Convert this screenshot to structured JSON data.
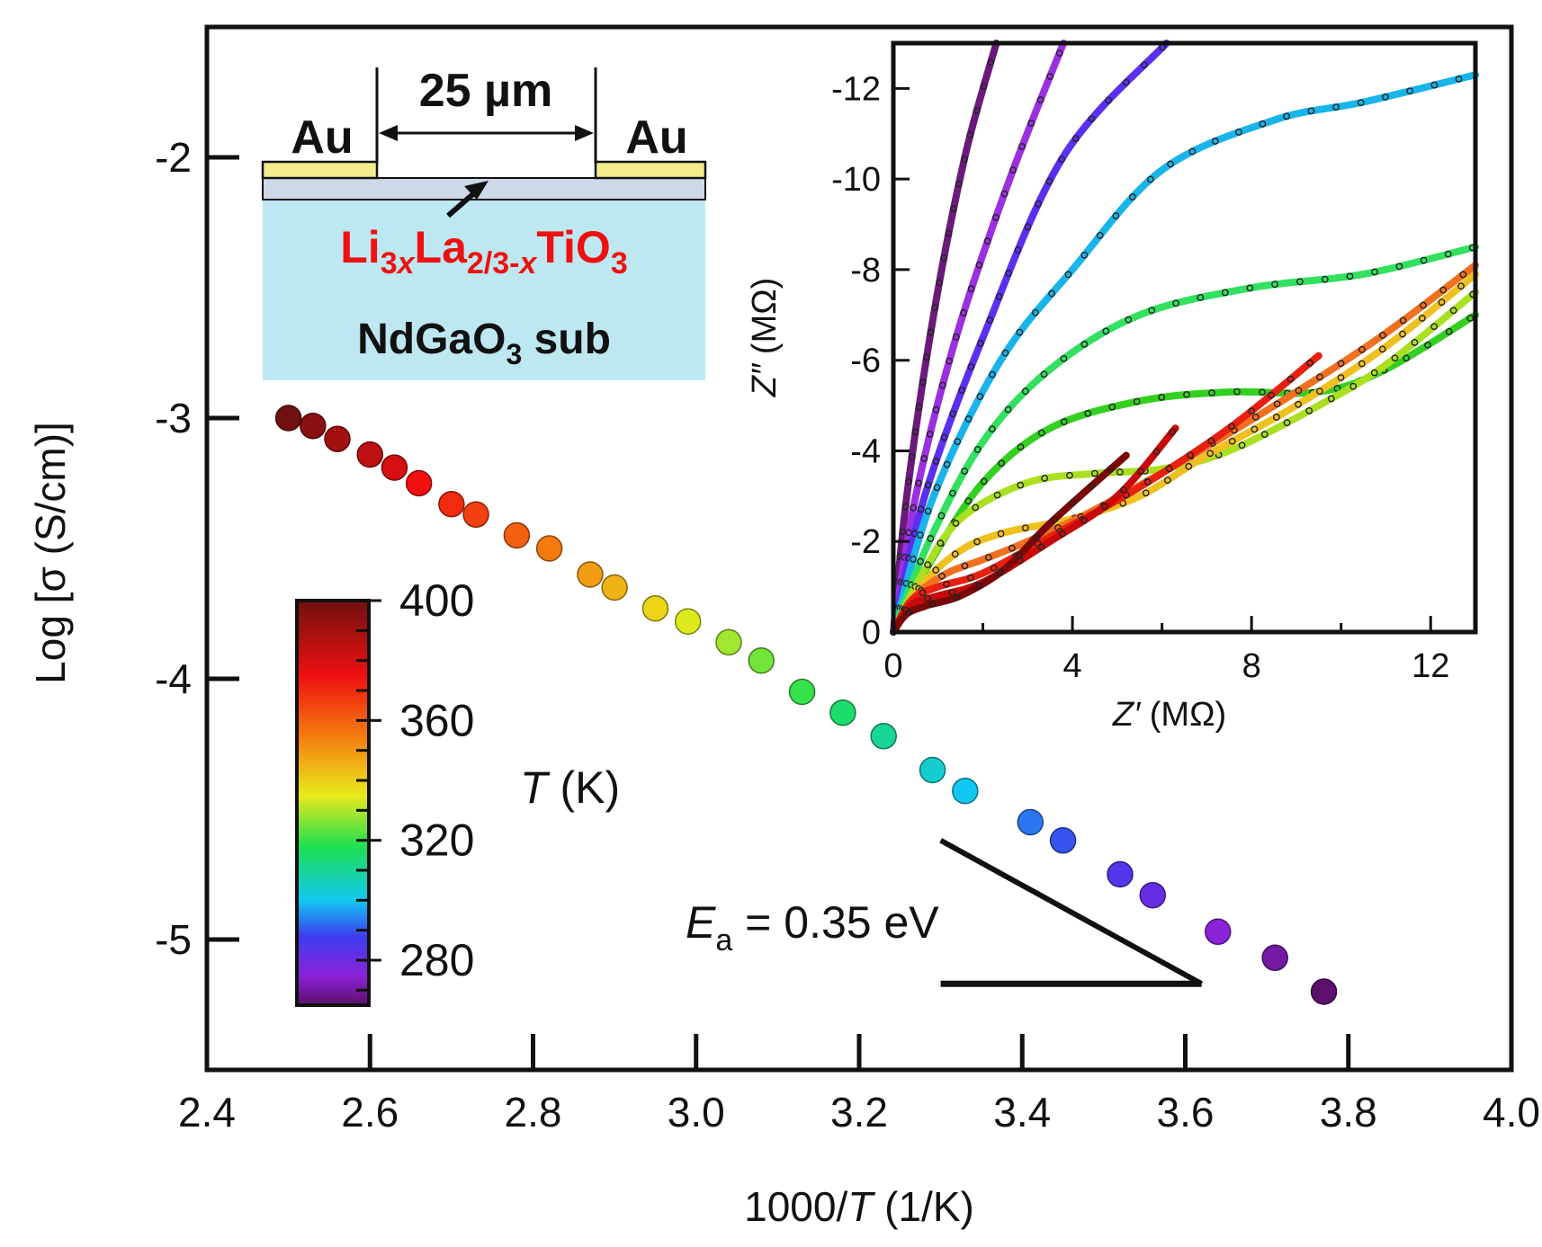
{
  "chart_data": [
    {
      "type": "scatter",
      "name": "arrhenius",
      "xlabel": "1000/T (1/K)",
      "xlabel_parts": [
        "1000/",
        "T",
        " (1/K)"
      ],
      "ylabel": "Log [σ (S/cm)]",
      "xlim": [
        2.4,
        4.0
      ],
      "ylim": [
        -5.5,
        -1.5
      ],
      "xticks": [
        2.4,
        2.6,
        2.8,
        3.0,
        3.2,
        3.4,
        3.6,
        3.8,
        4.0
      ],
      "xtick_labels": [
        "2.4",
        "2.6",
        "2.8",
        "3.0",
        "3.2",
        "3.4",
        "3.6",
        "3.8",
        "4.0"
      ],
      "yticks": [
        -2,
        -3,
        -4,
        -5
      ],
      "ytick_labels": [
        "-2",
        "-3",
        "-4",
        "-5"
      ],
      "points": [
        {
          "x": 2.5,
          "y": -3.0,
          "T": 400
        },
        {
          "x": 2.53,
          "y": -3.03,
          "T": 395
        },
        {
          "x": 2.56,
          "y": -3.08,
          "T": 390
        },
        {
          "x": 2.6,
          "y": -3.14,
          "T": 385
        },
        {
          "x": 2.63,
          "y": -3.19,
          "T": 380
        },
        {
          "x": 2.66,
          "y": -3.25,
          "T": 375
        },
        {
          "x": 2.7,
          "y": -3.33,
          "T": 370
        },
        {
          "x": 2.73,
          "y": -3.37,
          "T": 366
        },
        {
          "x": 2.78,
          "y": -3.45,
          "T": 360
        },
        {
          "x": 2.82,
          "y": -3.5,
          "T": 355
        },
        {
          "x": 2.87,
          "y": -3.6,
          "T": 349
        },
        {
          "x": 2.9,
          "y": -3.65,
          "T": 345
        },
        {
          "x": 2.95,
          "y": -3.73,
          "T": 339
        },
        {
          "x": 2.99,
          "y": -3.78,
          "T": 334
        },
        {
          "x": 3.04,
          "y": -3.86,
          "T": 329
        },
        {
          "x": 3.08,
          "y": -3.93,
          "T": 325
        },
        {
          "x": 3.13,
          "y": -4.05,
          "T": 320
        },
        {
          "x": 3.18,
          "y": -4.13,
          "T": 315
        },
        {
          "x": 3.23,
          "y": -4.22,
          "T": 310
        },
        {
          "x": 3.29,
          "y": -4.35,
          "T": 304
        },
        {
          "x": 3.33,
          "y": -4.43,
          "T": 300
        },
        {
          "x": 3.41,
          "y": -4.55,
          "T": 293
        },
        {
          "x": 3.45,
          "y": -4.62,
          "T": 290
        },
        {
          "x": 3.52,
          "y": -4.75,
          "T": 284
        },
        {
          "x": 3.56,
          "y": -4.83,
          "T": 281
        },
        {
          "x": 3.64,
          "y": -4.97,
          "T": 275
        },
        {
          "x": 3.71,
          "y": -5.07,
          "T": 270
        },
        {
          "x": 3.77,
          "y": -5.2,
          "T": 265
        }
      ],
      "slope_triangle": {
        "x_start": 3.3,
        "x_end": 3.62,
        "y_base": -5.17,
        "y_top": -4.62
      },
      "annotation": {
        "symbol": "E",
        "subscript": "a",
        "text": " = 0.35 eV"
      }
    },
    {
      "type": "line",
      "name": "impedance-inset",
      "xlabel_parts": [
        "Z′",
        " (MΩ)"
      ],
      "ylabel_parts": [
        "Z″",
        " (MΩ)"
      ],
      "xlim": [
        0,
        13
      ],
      "ylim": [
        0,
        -13
      ],
      "xticks": [
        0,
        4,
        8,
        12
      ],
      "xtick_labels": [
        "0",
        "4",
        "8",
        "12"
      ],
      "yticks": [
        0,
        -2,
        -4,
        -6,
        -8,
        -10,
        -12
      ],
      "ytick_labels": [
        "0",
        "-2",
        "-4",
        "-6",
        "-8",
        "-10",
        "-12"
      ],
      "series": [
        {
          "name": "T1",
          "color": "#6a1b7a",
          "points": [
            [
              0,
              0
            ],
            [
              0.3,
              -3
            ],
            [
              0.9,
              -7
            ],
            [
              1.6,
              -10.5
            ],
            [
              2.3,
              -13
            ]
          ]
        },
        {
          "name": "T2",
          "color": "#9b30e0",
          "points": [
            [
              0,
              0
            ],
            [
              0.5,
              -3
            ],
            [
              1.4,
              -6.5
            ],
            [
              2.6,
              -10
            ],
            [
              3.8,
              -13
            ]
          ]
        },
        {
          "name": "T3",
          "color": "#5a30f0",
          "points": [
            [
              0,
              0
            ],
            [
              0.7,
              -3
            ],
            [
              2.0,
              -6.5
            ],
            [
              3.8,
              -10.5
            ],
            [
              6.1,
              -13
            ]
          ]
        },
        {
          "name": "T4",
          "color": "#18b4ea",
          "points": [
            [
              0,
              0
            ],
            [
              0.9,
              -3
            ],
            [
              2.4,
              -6
            ],
            [
              4.0,
              -8
            ],
            [
              6.0,
              -10.2
            ],
            [
              8.5,
              -11.3
            ],
            [
              10.5,
              -11.7
            ],
            [
              13,
              -12.3
            ]
          ]
        },
        {
          "name": "T5",
          "color": "#33e060",
          "points": [
            [
              0,
              0
            ],
            [
              0.8,
              -2
            ],
            [
              2.0,
              -4.2
            ],
            [
              3.5,
              -5.8
            ],
            [
              5.5,
              -7.0
            ],
            [
              8.0,
              -7.6
            ],
            [
              10.5,
              -7.9
            ],
            [
              13,
              -8.5
            ]
          ]
        },
        {
          "name": "T6",
          "color": "#33d020",
          "points": [
            [
              0,
              0
            ],
            [
              0.8,
              -1.5
            ],
            [
              2.0,
              -3.3
            ],
            [
              3.5,
              -4.5
            ],
            [
              5.5,
              -5.1
            ],
            [
              7.5,
              -5.3
            ],
            [
              9.5,
              -5.3
            ],
            [
              11,
              -5.8
            ],
            [
              13,
              -7.0
            ]
          ]
        },
        {
          "name": "T7",
          "color": "#aae020",
          "points": [
            [
              0,
              0
            ],
            [
              0.6,
              -1.2
            ],
            [
              1.5,
              -2.5
            ],
            [
              3.0,
              -3.3
            ],
            [
              4.5,
              -3.5
            ],
            [
              6.0,
              -3.6
            ],
            [
              7.5,
              -4.0
            ],
            [
              9.5,
              -5.0
            ],
            [
              11,
              -5.9
            ],
            [
              13,
              -7.5
            ]
          ]
        },
        {
          "name": "T8",
          "color": "#f0c020",
          "points": [
            [
              0,
              0
            ],
            [
              0.6,
              -1.0
            ],
            [
              1.5,
              -1.8
            ],
            [
              2.5,
              -2.2
            ],
            [
              4.0,
              -2.5
            ],
            [
              5.5,
              -3.0
            ],
            [
              7.0,
              -3.9
            ],
            [
              9.0,
              -5.0
            ],
            [
              11,
              -6.3
            ],
            [
              13,
              -7.9
            ]
          ]
        },
        {
          "name": "T9",
          "color": "#f07020",
          "points": [
            [
              0,
              0
            ],
            [
              0.5,
              -0.8
            ],
            [
              1.2,
              -1.3
            ],
            [
              2.0,
              -1.6
            ],
            [
              3.0,
              -2.0
            ],
            [
              4.5,
              -2.7
            ],
            [
              6.5,
              -3.8
            ],
            [
              9.0,
              -5.3
            ],
            [
              11,
              -6.6
            ],
            [
              13,
              -8.1
            ]
          ]
        },
        {
          "name": "T10",
          "color": "#e82010",
          "points": [
            [
              0,
              0
            ],
            [
              0.4,
              -0.7
            ],
            [
              1.0,
              -1.0
            ],
            [
              2.0,
              -1.3
            ],
            [
              3.5,
              -2.1
            ],
            [
              5.5,
              -3.2
            ],
            [
              7.5,
              -4.5
            ],
            [
              9.5,
              -6.1
            ]
          ]
        },
        {
          "name": "T11",
          "color": "#c80a0a",
          "points": [
            [
              0,
              0
            ],
            [
              0.4,
              -0.6
            ],
            [
              1.0,
              -0.8
            ],
            [
              2.0,
              -1.1
            ],
            [
              3.5,
              -2.0
            ],
            [
              5.0,
              -3.0
            ],
            [
              6.3,
              -4.5
            ]
          ]
        },
        {
          "name": "T12",
          "color": "#7a0808",
          "points": [
            [
              0,
              0
            ],
            [
              0.3,
              -0.4
            ],
            [
              0.8,
              -0.6
            ],
            [
              1.5,
              -0.8
            ],
            [
              2.5,
              -1.4
            ],
            [
              3.5,
              -2.4
            ],
            [
              5.2,
              -3.9
            ]
          ]
        }
      ]
    }
  ],
  "colorbar": {
    "label_symbol": "T",
    "label_unit": " (K)",
    "min": 265,
    "max": 400,
    "ticks": [
      400,
      360,
      320,
      280
    ],
    "tick_labels": [
      "400",
      "360",
      "320",
      "280"
    ],
    "stops": [
      {
        "T": 265,
        "color": "#5e0f6e"
      },
      {
        "T": 275,
        "color": "#8a22d8"
      },
      {
        "T": 288,
        "color": "#3d3df0"
      },
      {
        "T": 300,
        "color": "#12c8f2"
      },
      {
        "T": 318,
        "color": "#1ee050"
      },
      {
        "T": 335,
        "color": "#eaea1a"
      },
      {
        "T": 355,
        "color": "#f47a10"
      },
      {
        "T": 375,
        "color": "#f01010"
      },
      {
        "T": 400,
        "color": "#701010"
      }
    ]
  },
  "schematic": {
    "electrode_left": "Au",
    "electrode_right": "Au",
    "gap": "25 µm",
    "film_formula": [
      {
        "t": "Li",
        "sub": false,
        "italic": false
      },
      {
        "t": "3",
        "sub": true,
        "italic": false
      },
      {
        "t": "x",
        "sub": true,
        "italic": true
      },
      {
        "t": "La",
        "sub": false,
        "italic": false
      },
      {
        "t": "2/3-",
        "sub": true,
        "italic": false
      },
      {
        "t": "x",
        "sub": true,
        "italic": true
      },
      {
        "t": "TiO",
        "sub": false,
        "italic": false
      },
      {
        "t": "3",
        "sub": true,
        "italic": false
      }
    ],
    "substrate": [
      {
        "t": "NdGaO",
        "sub": false
      },
      {
        "t": "3",
        "sub": true
      },
      {
        "t": " sub",
        "sub": false
      }
    ],
    "colors": {
      "substrate": "#bde8f2",
      "electrode": "#f3ea8c",
      "film": "#cdd8e8",
      "formula": "#ee1111"
    }
  }
}
